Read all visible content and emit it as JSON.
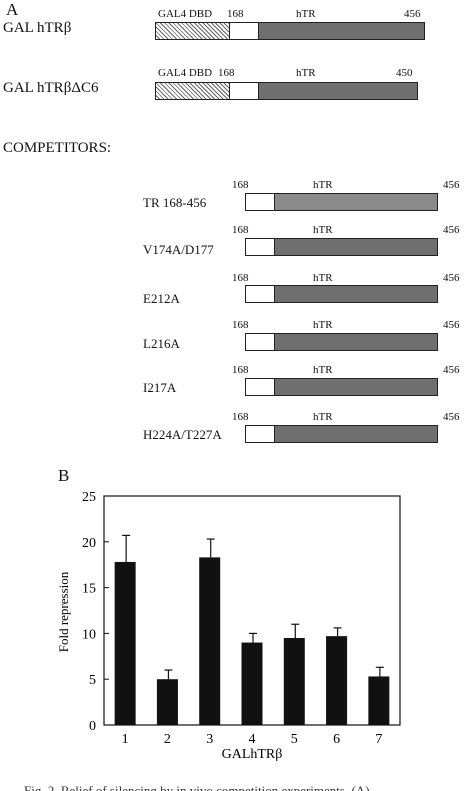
{
  "panel_a": {
    "letter": "A",
    "constructs": [
      {
        "name": "GAL hTRβ",
        "dbd": "GAL4 DBD",
        "start": "168",
        "region": "hTR",
        "end": "456"
      },
      {
        "name": "GAL hTRβΔC6",
        "dbd": "GAL4 DBD",
        "start": "168",
        "region": "hTR",
        "end": "450"
      }
    ],
    "competitors_heading": "COMPETITORS:",
    "competitors": [
      {
        "name": "TR 168-456",
        "start": "168",
        "region": "hTR",
        "end": "456"
      },
      {
        "name": "V174A/D177",
        "start": "168",
        "region": "hTR",
        "end": "456"
      },
      {
        "name": "E212A",
        "start": "168",
        "region": "hTR",
        "end": "456"
      },
      {
        "name": "L216A",
        "start": "168",
        "region": "hTR",
        "end": "456"
      },
      {
        "name": "I217A",
        "start": "168",
        "region": "hTR",
        "end": "456"
      },
      {
        "name": "H224A/T227A",
        "start": "168",
        "region": "hTR",
        "end": "456"
      }
    ]
  },
  "panel_b": {
    "letter": "B",
    "caption_fragment": "Fig. 2.  Relief of silencing by in vivo competition experiments. (A)"
  },
  "chart_data": {
    "type": "bar",
    "categories": [
      "1",
      "2",
      "3",
      "4",
      "5",
      "6",
      "7"
    ],
    "values": [
      17.8,
      5.0,
      18.3,
      9.0,
      9.5,
      9.7,
      5.3
    ],
    "errors": [
      2.9,
      1.0,
      2.0,
      1.0,
      1.5,
      0.9,
      1.0
    ],
    "xlabel": "GALhTRβ",
    "ylabel": "Fold repression",
    "ylim": [
      0,
      25
    ],
    "yticks": [
      "0",
      "5",
      "10",
      "15",
      "20",
      "25"
    ],
    "colors": {
      "bar": "#111111"
    }
  }
}
